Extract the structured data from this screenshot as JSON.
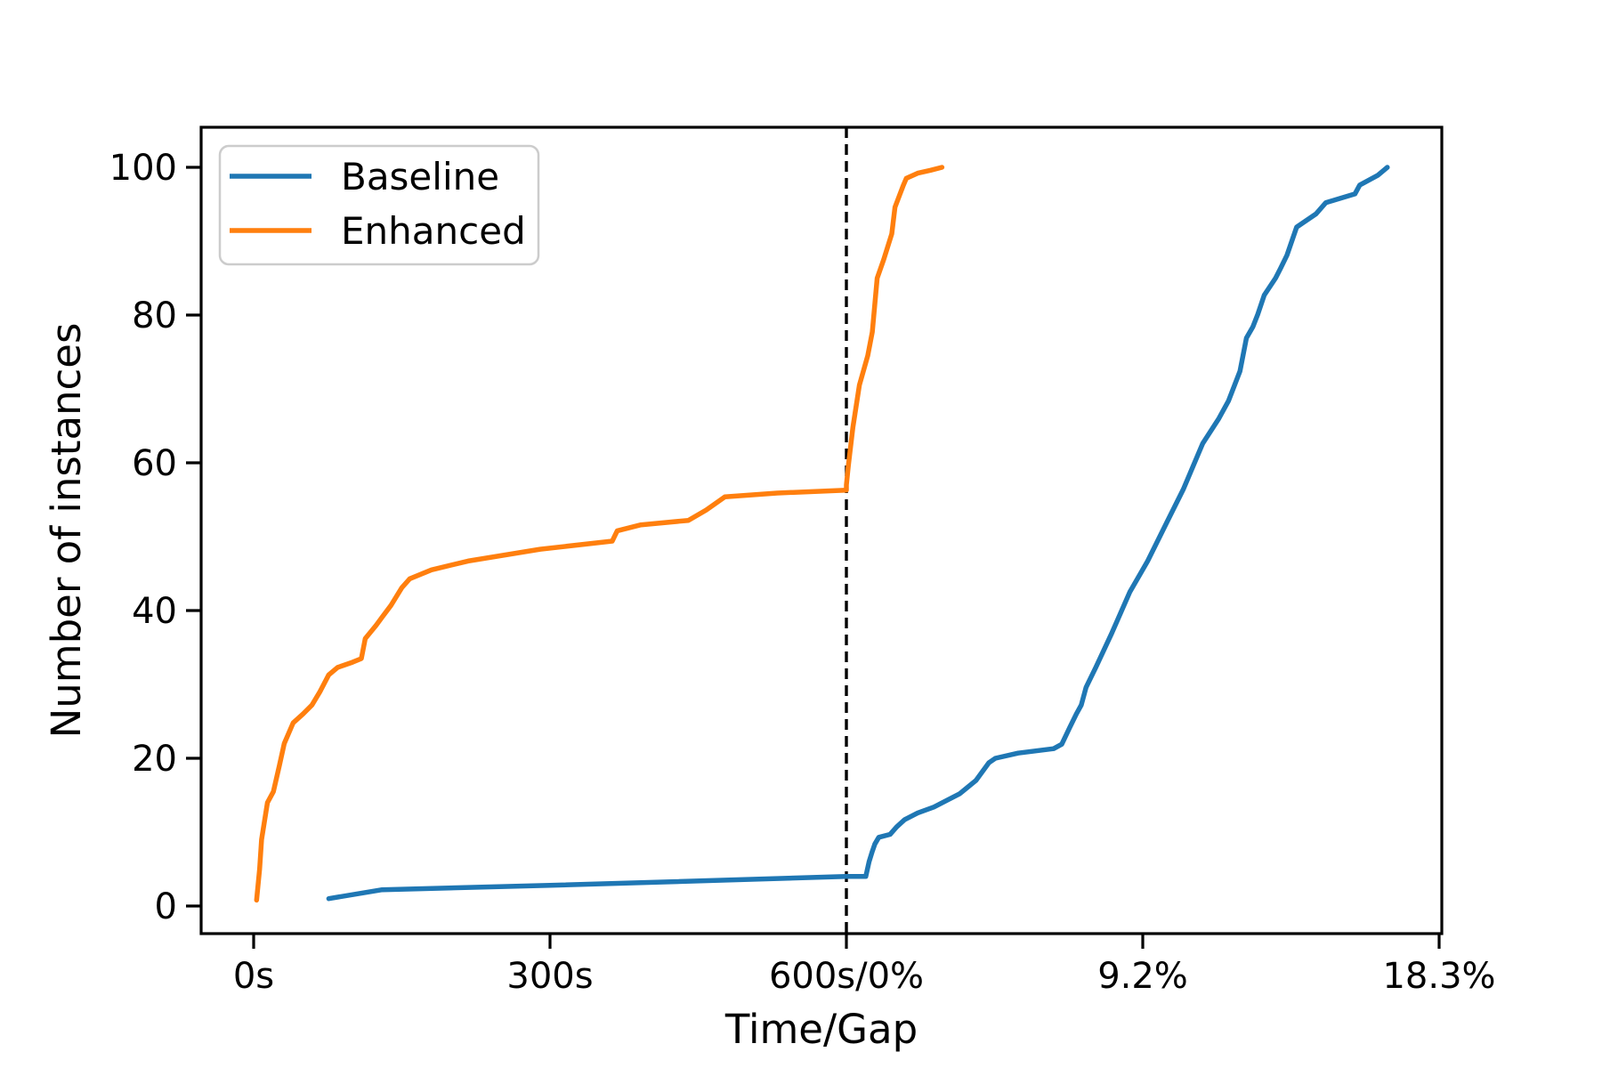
{
  "chart_data": {
    "type": "line",
    "title": "",
    "xlabel": "Time/Gap",
    "ylabel": "Number of instances",
    "grid": false,
    "legend_position": "upper left",
    "background_color": "#ffffff",
    "axis_color": "#000000",
    "x_axis": {
      "kind": "composite",
      "left_half": {
        "unit": "seconds",
        "range": [
          0,
          600
        ]
      },
      "right_half": {
        "unit": "optimality_gap_percent",
        "range": [
          0,
          18.3
        ]
      },
      "boundary_label": "600s/0%",
      "ticks": [
        {
          "pos": 0,
          "label": "0s"
        },
        {
          "pos": 1,
          "label": "300s"
        },
        {
          "pos": 2,
          "label": "600s/0%"
        },
        {
          "pos": 3,
          "label": "9.2%"
        },
        {
          "pos": 4,
          "label": "18.3%"
        }
      ]
    },
    "y_axis": {
      "label": "Number of instances",
      "ticks": [
        0,
        20,
        40,
        60,
        80,
        100
      ],
      "range": [
        0,
        100
      ]
    },
    "divider": {
      "style": "dashed",
      "color": "#000000",
      "at_label": "600s/0%"
    },
    "series": [
      {
        "name": "Baseline",
        "color": "#1f77b4",
        "time_points": [
          [
            76,
            1
          ],
          [
            130,
            2.2
          ],
          [
            300,
            2.8
          ],
          [
            600,
            4
          ]
        ],
        "gap_points": [
          [
            0,
            4
          ],
          [
            0.6,
            4
          ],
          [
            0.7,
            6
          ],
          [
            0.8,
            7.4
          ],
          [
            0.88,
            8.4
          ],
          [
            1.0,
            9.3
          ],
          [
            1.35,
            9.7
          ],
          [
            1.55,
            10.7
          ],
          [
            1.8,
            11.7
          ],
          [
            2.2,
            12.6
          ],
          [
            2.7,
            13.4
          ],
          [
            3.1,
            14.3
          ],
          [
            3.5,
            15.2
          ],
          [
            4.0,
            17
          ],
          [
            4.4,
            19.4
          ],
          [
            4.6,
            20
          ],
          [
            5.3,
            20.7
          ],
          [
            6.4,
            21.3
          ],
          [
            6.65,
            21.9
          ],
          [
            6.9,
            24.2
          ],
          [
            7.1,
            26
          ],
          [
            7.25,
            27.2
          ],
          [
            7.4,
            29.6
          ],
          [
            7.7,
            32.3
          ],
          [
            8.2,
            37
          ],
          [
            8.75,
            42.5
          ],
          [
            9.3,
            46.7
          ],
          [
            9.9,
            52
          ],
          [
            10.4,
            56.4
          ],
          [
            11.0,
            62.6
          ],
          [
            11.5,
            66
          ],
          [
            11.8,
            68.4
          ],
          [
            12.15,
            72.4
          ],
          [
            12.35,
            76.9
          ],
          [
            12.55,
            78.4
          ],
          [
            12.7,
            80.1
          ],
          [
            12.9,
            82.7
          ],
          [
            13.25,
            85
          ],
          [
            13.4,
            86.3
          ],
          [
            13.6,
            88.1
          ],
          [
            13.9,
            91.9
          ],
          [
            14.5,
            93.7
          ],
          [
            14.8,
            95.2
          ],
          [
            15.7,
            96.4
          ],
          [
            15.85,
            97.6
          ],
          [
            16.4,
            98.9
          ],
          [
            16.7,
            100
          ]
        ]
      },
      {
        "name": "Enhanced",
        "color": "#ff7f0e",
        "time_points": [
          [
            3,
            0.8
          ],
          [
            6,
            5
          ],
          [
            8,
            9
          ],
          [
            14,
            14
          ],
          [
            20,
            15.5
          ],
          [
            26,
            19
          ],
          [
            31,
            22
          ],
          [
            40,
            24.8
          ],
          [
            50,
            26
          ],
          [
            59,
            27.2
          ],
          [
            67,
            29
          ],
          [
            76,
            31.3
          ],
          [
            85,
            32.3
          ],
          [
            100,
            33
          ],
          [
            109,
            33.5
          ],
          [
            113,
            36.2
          ],
          [
            124,
            38
          ],
          [
            130,
            39.1
          ],
          [
            139,
            40.7
          ],
          [
            150,
            43.1
          ],
          [
            158,
            44.3
          ],
          [
            180,
            45.5
          ],
          [
            217,
            46.7
          ],
          [
            290,
            48.3
          ],
          [
            363,
            49.4
          ],
          [
            368,
            50.8
          ],
          [
            392,
            51.6
          ],
          [
            440,
            52.2
          ],
          [
            458,
            53.6
          ],
          [
            477,
            55.4
          ],
          [
            530,
            55.9
          ],
          [
            600,
            56.3
          ]
        ],
        "gap_points": [
          [
            0,
            57
          ],
          [
            0.06,
            59.6
          ],
          [
            0.2,
            64.8
          ],
          [
            0.4,
            70.5
          ],
          [
            0.66,
            74.5
          ],
          [
            0.8,
            77.7
          ],
          [
            0.95,
            85
          ],
          [
            1.15,
            87.5
          ],
          [
            1.4,
            91
          ],
          [
            1.5,
            94.6
          ],
          [
            1.76,
            97.6
          ],
          [
            1.85,
            98.5
          ],
          [
            2.2,
            99.2
          ],
          [
            2.6,
            99.6
          ],
          [
            2.95,
            100
          ]
        ]
      }
    ]
  }
}
